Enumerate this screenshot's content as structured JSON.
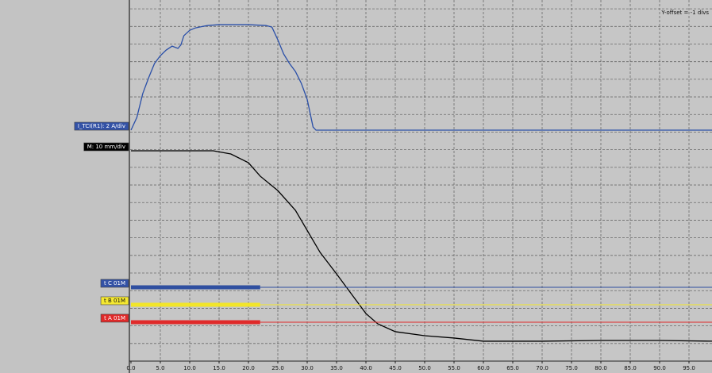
{
  "chart_data": {
    "type": "line",
    "annotation": "Y-offset = -1 divs",
    "xlim": [
      0,
      99
    ],
    "ylim": [
      0,
      20.5
    ],
    "yticks": [
      1,
      2,
      3,
      4,
      5,
      6,
      7,
      8,
      9,
      10,
      11,
      12,
      13,
      14,
      15,
      16,
      17,
      18,
      19,
      20
    ],
    "xticks": [
      {
        "value": 0,
        "label": "0.0"
      },
      {
        "value": 5,
        "label": "5.0"
      },
      {
        "value": 10,
        "label": "10.0"
      },
      {
        "value": 15,
        "label": "15.0"
      },
      {
        "value": 20,
        "label": "20.0"
      },
      {
        "value": 25,
        "label": "25.0"
      },
      {
        "value": 30,
        "label": "30.0"
      },
      {
        "value": 35,
        "label": "35.0"
      },
      {
        "value": 40,
        "label": "40.0"
      },
      {
        "value": 45,
        "label": "45.0"
      },
      {
        "value": 50,
        "label": "50.0"
      },
      {
        "value": 55,
        "label": "55.0"
      },
      {
        "value": 60,
        "label": "60.0"
      },
      {
        "value": 65,
        "label": "65.0"
      },
      {
        "value": 70,
        "label": "70.0"
      },
      {
        "value": 75,
        "label": "75.0"
      },
      {
        "value": 80,
        "label": "80.0"
      },
      {
        "value": 85,
        "label": "85.0"
      },
      {
        "value": 90,
        "label": "90.0"
      },
      {
        "value": 95,
        "label": "95.0"
      }
    ],
    "grid": true,
    "series": [
      {
        "name": "I_TCI(R1): 2 A/div",
        "color": "#2a4fa8",
        "label_bg": "#3352a6",
        "label_fg": "#ffffff",
        "width": 1.3,
        "x": [
          0,
          1,
          2,
          3,
          4,
          5,
          6,
          7,
          8,
          8.5,
          9,
          10,
          11,
          13,
          15,
          20,
          23,
          24,
          25,
          26,
          27,
          28,
          29,
          30,
          31,
          31.5,
          99
        ],
        "values": [
          13.11,
          13.83,
          15.18,
          16.08,
          16.89,
          17.34,
          17.66,
          17.88,
          17.75,
          17.95,
          18.47,
          18.78,
          18.92,
          19.05,
          19.1,
          19.1,
          19.05,
          18.96,
          18.24,
          17.43,
          16.89,
          16.44,
          15.77,
          14.86,
          13.29,
          13.11,
          13.11
        ]
      },
      {
        "name": "M: 10 mm/div",
        "color": "#000000",
        "label_bg": "#000000",
        "label_fg": "#ffffff",
        "width": 1.3,
        "x": [
          0,
          14,
          17,
          20,
          22,
          25,
          28,
          32.2,
          35,
          38,
          40,
          42,
          45,
          50,
          55,
          60,
          70,
          80,
          90,
          99
        ],
        "values": [
          11.94,
          11.94,
          11.76,
          11.26,
          10.5,
          9.68,
          8.56,
          6.17,
          4.95,
          3.6,
          2.7,
          2.12,
          1.67,
          1.44,
          1.31,
          1.13,
          1.13,
          1.17,
          1.17,
          1.13
        ]
      },
      {
        "name": "t C 01M",
        "color": "#2f4fa0",
        "label_bg": "#3352a6",
        "label_fg": "#ffffff",
        "width": 5,
        "x": [
          0,
          22
        ],
        "values": [
          4.19,
          4.19
        ]
      },
      {
        "name": "t B 01M",
        "color": "#f2e52a",
        "label_bg": "#f5e830",
        "label_fg": "#111111",
        "width": 5,
        "x": [
          0,
          22
        ],
        "values": [
          3.2,
          3.2
        ]
      },
      {
        "name": "t A 01M",
        "color": "#e02a2a",
        "label_bg": "#e02a2a",
        "label_fg": "#ffffff",
        "width": 5,
        "x": [
          0,
          22
        ],
        "values": [
          2.21,
          2.21
        ]
      }
    ]
  }
}
